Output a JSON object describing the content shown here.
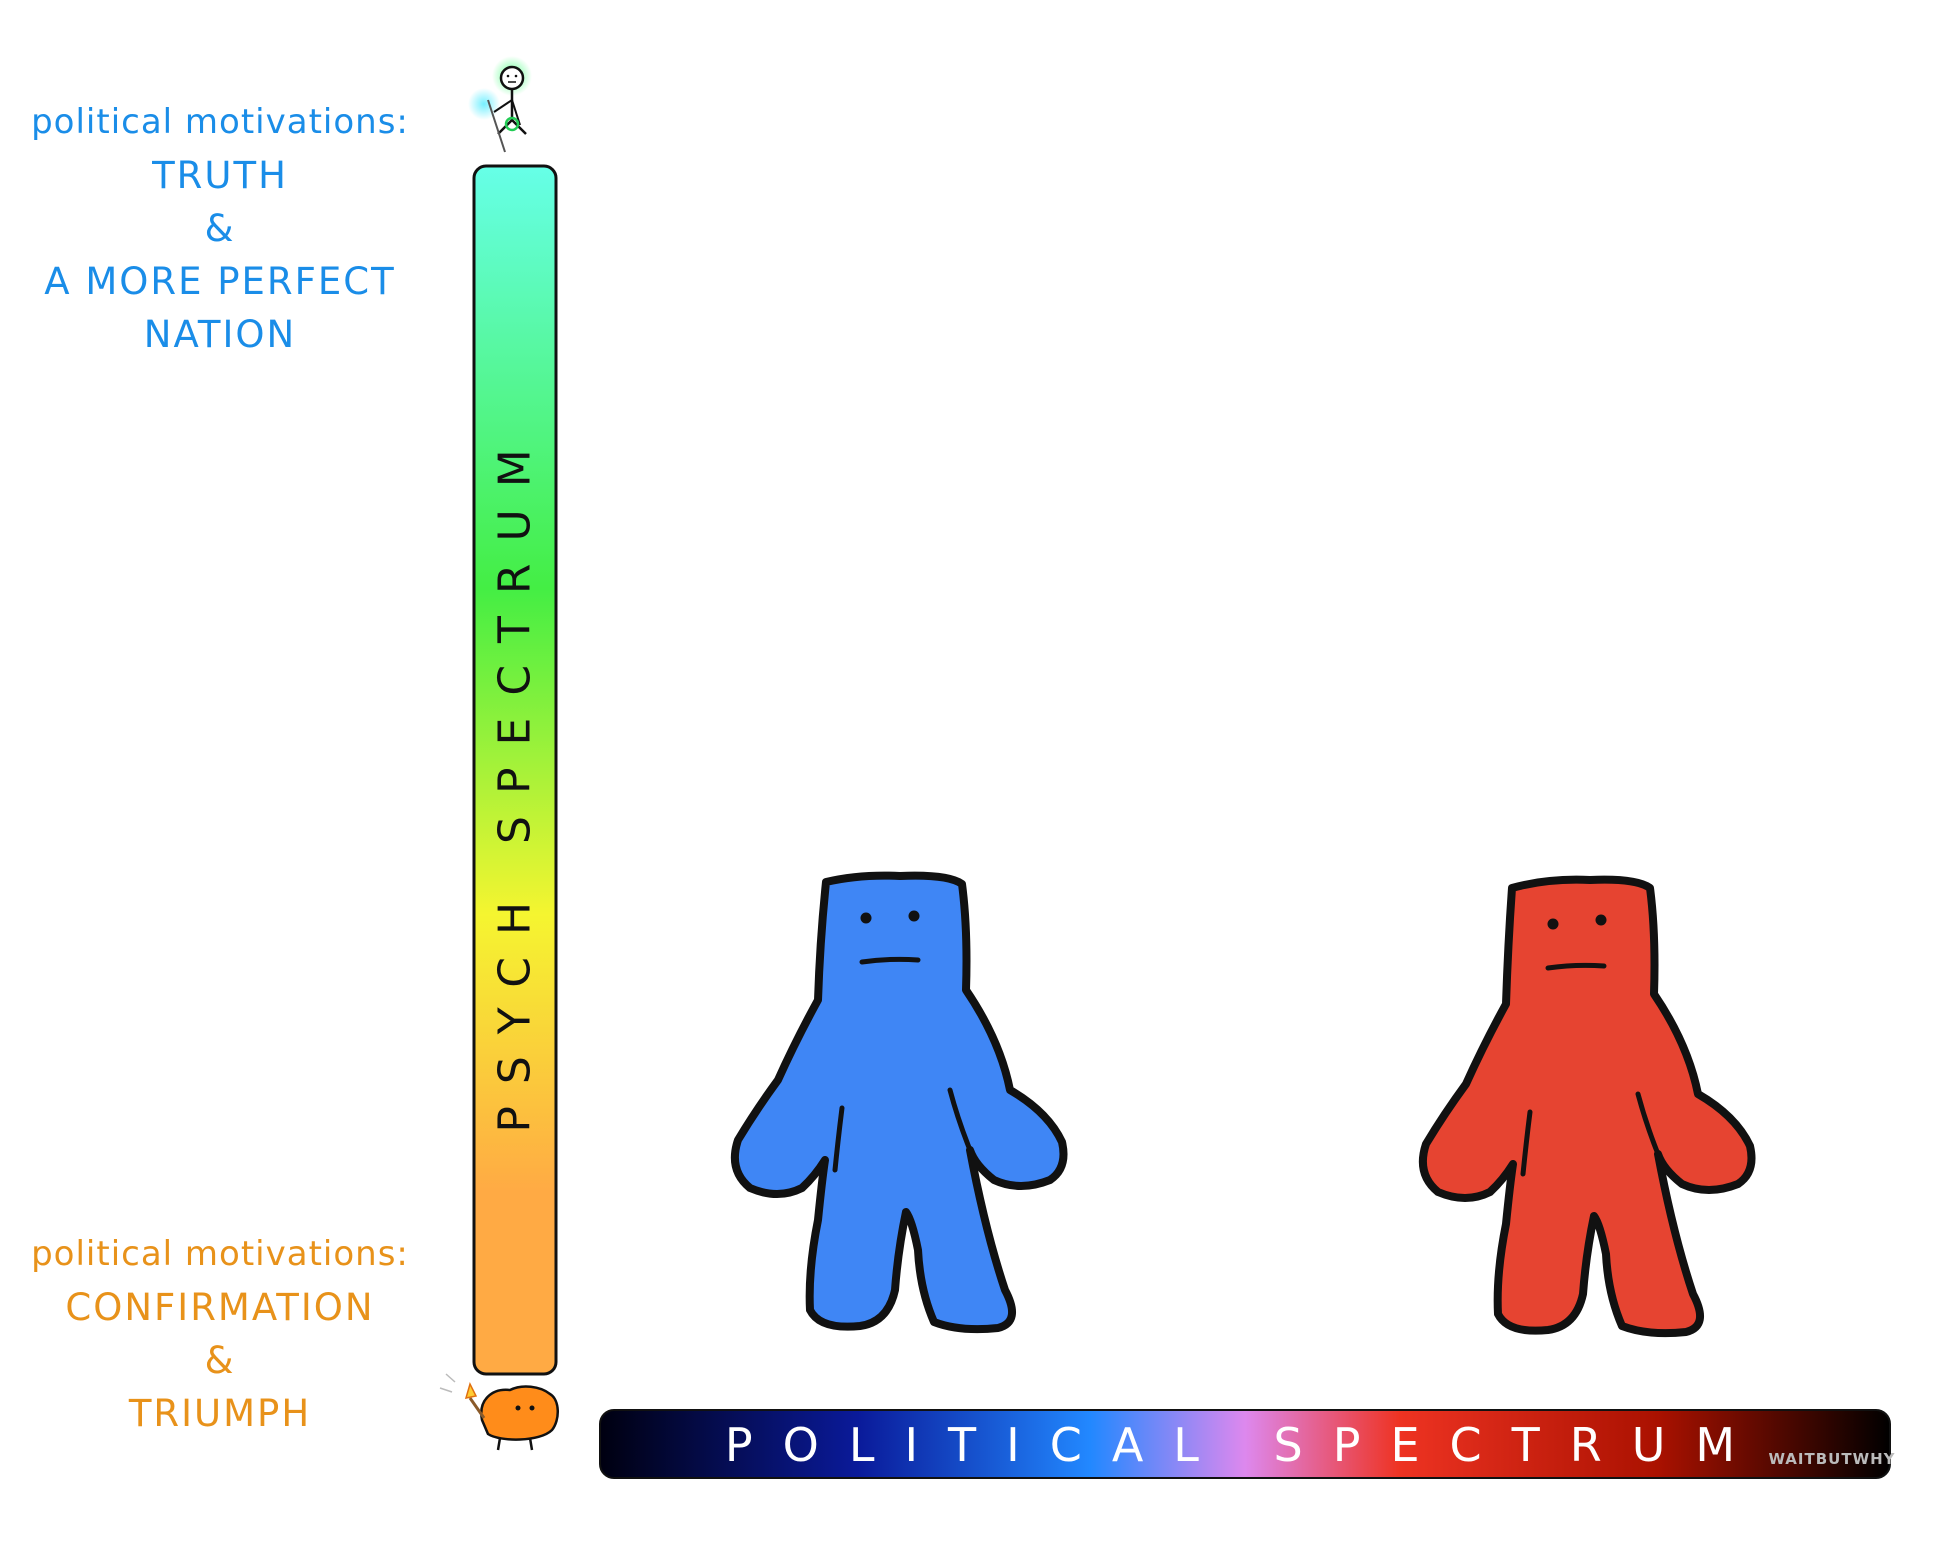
{
  "top_motivation": {
    "lead": "political motivations:",
    "lines": [
      "TRUTH",
      "&",
      "A MORE PERFECT",
      "NATION"
    ]
  },
  "bottom_motivation": {
    "lead": "political motivations:",
    "lines": [
      "CONFIRMATION",
      "&",
      "TRIUMPH"
    ]
  },
  "psych_spectrum": {
    "label": "PSYCH SPECTRUM",
    "colors": [
      "#66ffe8",
      "#44ee44",
      "#f5f530",
      "#ffaa44"
    ]
  },
  "political_spectrum": {
    "label": "POLITICAL SPECTRUM",
    "colors": [
      "#000010",
      "#0a1a9a",
      "#2288ff",
      "#dd88ee",
      "#ee3322",
      "#aa1100",
      "#000000"
    ]
  },
  "figures": [
    {
      "name": "blue-figure",
      "color": "#3f86f5"
    },
    {
      "name": "red-figure",
      "color": "#e64431"
    }
  ],
  "credit": "WAITBUTWHY"
}
